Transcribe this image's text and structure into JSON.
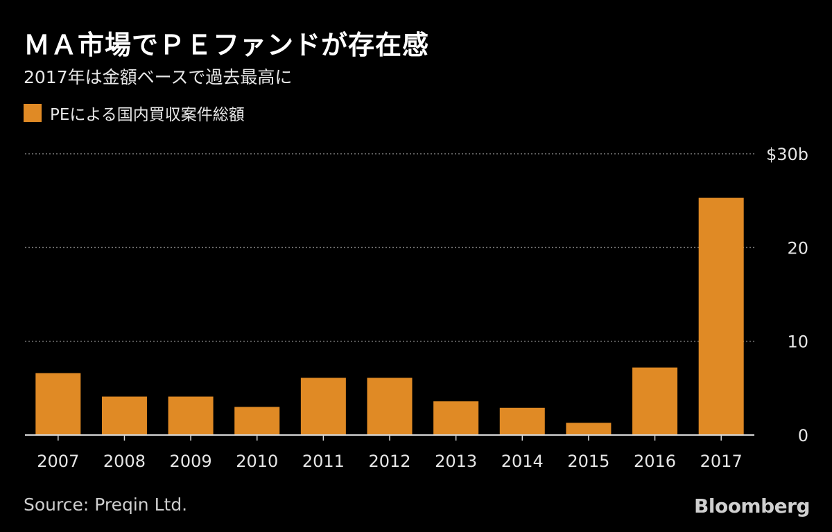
{
  "chart_data": {
    "type": "bar",
    "title": "ＭＡ市場でＰＥファンドが存在感",
    "subtitle": "2017年は金額ベースで過去最高に",
    "legend": [
      {
        "name": "PEによる国内買収案件総額",
        "color": "#E08A25"
      }
    ],
    "categories": [
      "2007",
      "2008",
      "2009",
      "2010",
      "2011",
      "2012",
      "2013",
      "2014",
      "2015",
      "2016",
      "2017"
    ],
    "series": [
      {
        "name": "PEによる国内買収案件総額",
        "values": [
          6.6,
          4.1,
          4.1,
          3.0,
          6.1,
          6.1,
          3.6,
          2.9,
          1.3,
          7.2,
          25.3
        ]
      }
    ],
    "y_ticks": [
      {
        "value": 30,
        "label": "$30b"
      },
      {
        "value": 20,
        "label": "20"
      },
      {
        "value": 10,
        "label": "10"
      },
      {
        "value": 0,
        "label": "0"
      }
    ],
    "ylim": [
      0,
      30
    ],
    "grid": true,
    "xlabel": "",
    "ylabel": "",
    "source": "Source: Preqin Ltd."
  },
  "brand": "Bloomberg",
  "colors": {
    "background": "#000000",
    "bar": "#E08A25",
    "grid": "#7a7a7a",
    "axis": "#d9d9d9",
    "text": "#ffffff"
  }
}
